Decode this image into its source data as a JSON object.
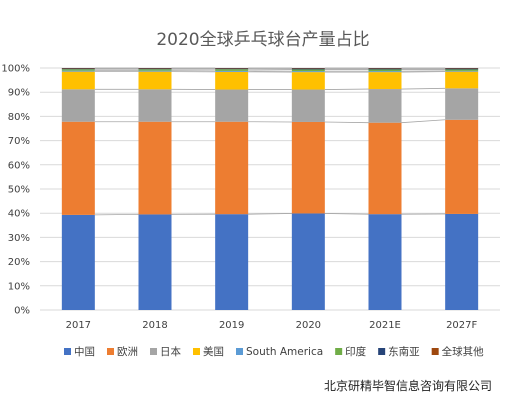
{
  "source_note": "北京研精毕智信息咨询有限公司",
  "colors": {
    "中国": "#4472C4",
    "欧洲": "#ED7D31",
    "日本": "#A5A5A5",
    "美国": "#FFC000",
    "South America": "#5B9BD5",
    "印度": "#70AD47",
    "东南亚": "#264478",
    "全球其他": "#9E480E",
    "grid": "#d9d9d9",
    "connector": "#a6a6a6"
  },
  "chart_data": {
    "type": "bar",
    "stacked": "percent",
    "title": "2020全球乒乓球台产量占比",
    "xlabel": "",
    "ylabel": "",
    "ylim": [
      0,
      100
    ],
    "yticks": [
      "0%",
      "10%",
      "20%",
      "30%",
      "40%",
      "50%",
      "60%",
      "70%",
      "80%",
      "90%",
      "100%"
    ],
    "categories": [
      "2017",
      "2018",
      "2019",
      "2020",
      "2021E",
      "2027F"
    ],
    "series_lines": true,
    "legend_position": "bottom",
    "series": [
      {
        "name": "中国",
        "values": [
          39.3,
          39.5,
          39.6,
          39.9,
          39.6,
          39.7
        ]
      },
      {
        "name": "欧洲",
        "values": [
          38.5,
          38.3,
          38.2,
          37.8,
          37.8,
          38.9
        ]
      },
      {
        "name": "日本",
        "values": [
          13.4,
          13.4,
          13.3,
          13.4,
          13.9,
          13.0
        ]
      },
      {
        "name": "美国",
        "values": [
          7.3,
          7.3,
          7.3,
          7.2,
          7.0,
          6.9
        ]
      },
      {
        "name": "South America",
        "values": [
          0.4,
          0.4,
          0.4,
          0.4,
          0.4,
          0.3
        ]
      },
      {
        "name": "印度",
        "values": [
          0.6,
          0.6,
          0.7,
          0.7,
          0.7,
          0.6
        ]
      },
      {
        "name": "东南亚",
        "values": [
          0.3,
          0.3,
          0.3,
          0.4,
          0.4,
          0.4
        ]
      },
      {
        "name": "全球其他",
        "values": [
          0.2,
          0.2,
          0.2,
          0.2,
          0.2,
          0.2
        ]
      }
    ]
  }
}
